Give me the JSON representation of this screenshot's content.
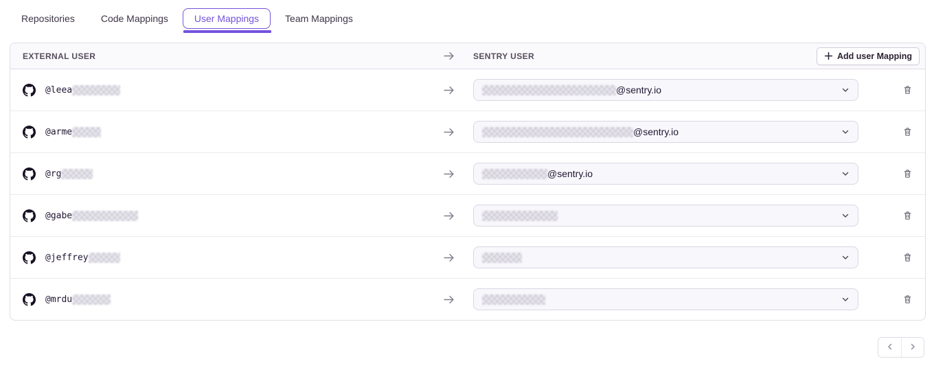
{
  "colors": {
    "accent": "#7553DC",
    "border": "#E0DCE6",
    "header_bg": "#FAF9FC",
    "select_bg": "#F8F7FB"
  },
  "tabs": {
    "items": [
      {
        "label": "Repositories",
        "active": false
      },
      {
        "label": "Code Mappings",
        "active": false
      },
      {
        "label": "User Mappings",
        "active": true
      },
      {
        "label": "Team Mappings",
        "active": false
      }
    ]
  },
  "table": {
    "columns": {
      "external": "EXTERNAL USER",
      "sentry": "SENTRY USER"
    },
    "add_button": {
      "label": "Add user Mapping",
      "icon": "plus-icon"
    },
    "rows": [
      {
        "external_user": {
          "visible": "@leea",
          "redacted_width": 70
        },
        "sentry_user": {
          "redacted_width": 195,
          "visible_suffix": "@sentry.io"
        }
      },
      {
        "external_user": {
          "visible": "@arme",
          "redacted_width": 42
        },
        "sentry_user": {
          "redacted_width": 220,
          "visible_suffix": "@sentry.io"
        }
      },
      {
        "external_user": {
          "visible": "@rg",
          "redacted_width": 46
        },
        "sentry_user": {
          "redacted_width": 95,
          "visible_suffix": "@sentry.io"
        }
      },
      {
        "external_user": {
          "visible": "@gabe",
          "redacted_width": 96
        },
        "sentry_user": {
          "redacted_width": 110,
          "visible_suffix": ""
        }
      },
      {
        "external_user": {
          "visible": "@jeffrey",
          "redacted_width": 46
        },
        "sentry_user": {
          "redacted_width": 58,
          "visible_suffix": ""
        }
      },
      {
        "external_user": {
          "visible": "@mrdu",
          "redacted_width": 56
        },
        "sentry_user": {
          "redacted_width": 92,
          "visible_suffix": ""
        }
      }
    ]
  },
  "icons": {
    "source": "github-icon",
    "mapping_arrow": "arrow-right-icon",
    "select": "chevron-down-icon",
    "delete": "trash-icon",
    "pager_prev": "chevron-left-icon",
    "pager_next": "chevron-right-icon"
  }
}
